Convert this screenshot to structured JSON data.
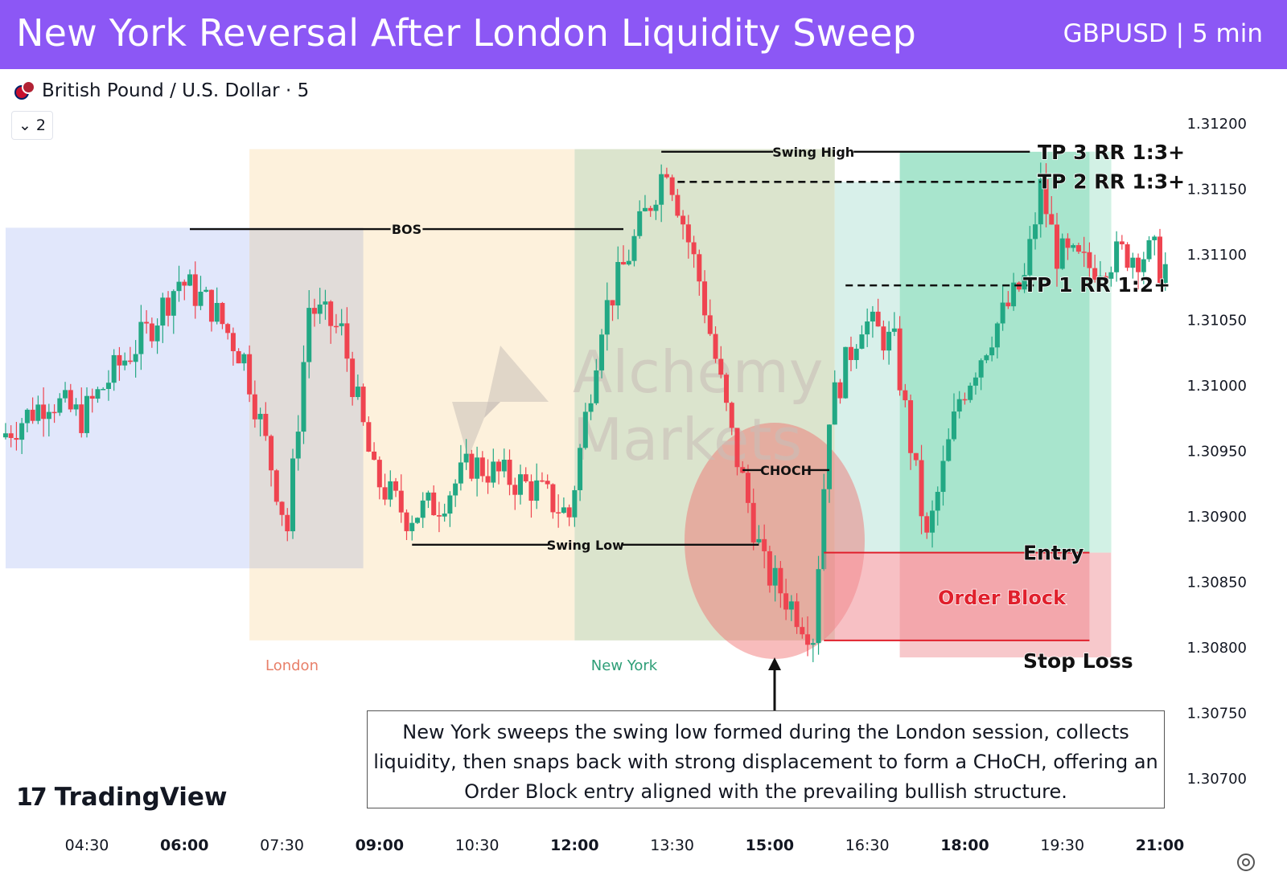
{
  "header": {
    "title": "New York Reversal After London Liquidity Sweep",
    "subtitle": "GBPUSD | 5 min"
  },
  "symbol_bar": {
    "label": "British Pound / U.S. Dollar · 5",
    "collapse_count": "2"
  },
  "branding": {
    "logo_text": "TradingView",
    "logo_mark": "17",
    "watermark_line1": "Alchemy",
    "watermark_line2": "Markets"
  },
  "callout_text": "New York sweeps the swing low formed during the London session, collects liquidity, then snaps back with strong displacement to form a CHoCH, offering an Order Block entry aligned with the prevailing bullish structure.",
  "colors": {
    "header_bg": "#8c57f5",
    "bull": "#22a884",
    "bear": "#ef4450",
    "asia_zone": "#e1e7fb",
    "london_zone": "#fdf1dc",
    "newyork_zone": "#dbe4cd",
    "profit_zone": "#a8e5cd",
    "loss_zone": "#f7c8cb",
    "order_block": "#f08c93"
  },
  "chart_data": {
    "type": "candlestick",
    "symbol": "GBPUSD",
    "timeframe": "5 min",
    "y_axis": {
      "min": 1.3066,
      "max": 1.3122,
      "ticks": [
        "1.31200",
        "1.31150",
        "1.31100",
        "1.31050",
        "1.31000",
        "1.30950",
        "1.30900",
        "1.30850",
        "1.30800",
        "1.30750",
        "1.30700"
      ]
    },
    "x_axis": {
      "ticks": [
        {
          "label": "04:30",
          "bold": false
        },
        {
          "label": "06:00",
          "bold": true
        },
        {
          "label": "07:30",
          "bold": false
        },
        {
          "label": "09:00",
          "bold": true
        },
        {
          "label": "10:30",
          "bold": false
        },
        {
          "label": "12:00",
          "bold": true
        },
        {
          "label": "13:30",
          "bold": false
        },
        {
          "label": "15:00",
          "bold": true
        },
        {
          "label": "16:30",
          "bold": false
        },
        {
          "label": "18:00",
          "bold": true
        },
        {
          "label": "19:30",
          "bold": false
        },
        {
          "label": "21:00",
          "bold": true
        }
      ]
    },
    "sessions": [
      {
        "label": "",
        "start": "03:15",
        "end": "07:00",
        "low": 1.3086,
        "high": 1.3112,
        "color": "#e1e7fb"
      },
      {
        "label": "London",
        "start": "07:00",
        "end": "12:00",
        "low": 1.30805,
        "high": 1.3118,
        "color": "#fdf1dc"
      },
      {
        "label": "New York",
        "start": "12:00",
        "end": "16:00",
        "low": 1.30805,
        "high": 1.3118,
        "color": "#dbe4cd"
      }
    ],
    "trade": {
      "entry": 1.30872,
      "stop_loss": 1.30805,
      "tp1": 1.31076,
      "tp2": 1.31155,
      "tp3": 1.31178,
      "start": "17:00",
      "end": "20:15"
    },
    "levels": [
      {
        "label": "BOS",
        "price": 1.31119,
        "start": "06:05",
        "end": "12:45"
      },
      {
        "label": "Swing High",
        "price": 1.31178,
        "start": "13:20",
        "end": "19:00"
      },
      {
        "label": "Swing Low",
        "price": 1.30878,
        "start": "09:30",
        "end": "14:50"
      },
      {
        "label": "CHOCH",
        "price": 1.30935,
        "start": "14:35",
        "end": "15:55"
      }
    ],
    "annotations": {
      "entry": "Entry",
      "order_block": "Order Block",
      "stop_loss": "Stop Loss",
      "tp1": "TP 1 RR 1:2+",
      "tp2": "TP 2 RR 1:3+",
      "tp3": "TP 3 RR 1:3+"
    },
    "path": [
      {
        "t": "03:15",
        "p": 1.3096
      },
      {
        "t": "04:00",
        "p": 1.3099
      },
      {
        "t": "04:30",
        "p": 1.30975
      },
      {
        "t": "05:00",
        "p": 1.3101
      },
      {
        "t": "05:30",
        "p": 1.3104
      },
      {
        "t": "06:00",
        "p": 1.3108
      },
      {
        "t": "06:30",
        "p": 1.3106
      },
      {
        "t": "07:00",
        "p": 1.3102
      },
      {
        "t": "07:40",
        "p": 1.3089
      },
      {
        "t": "08:00",
        "p": 1.3106
      },
      {
        "t": "08:30",
        "p": 1.3104
      },
      {
        "t": "09:00",
        "p": 1.3093
      },
      {
        "t": "09:30",
        "p": 1.309
      },
      {
        "t": "10:00",
        "p": 1.3091
      },
      {
        "t": "10:30",
        "p": 1.3094
      },
      {
        "t": "11:00",
        "p": 1.3093
      },
      {
        "t": "11:30",
        "p": 1.3092
      },
      {
        "t": "12:00",
        "p": 1.309
      },
      {
        "t": "12:30",
        "p": 1.3105
      },
      {
        "t": "13:00",
        "p": 1.3111
      },
      {
        "t": "13:30",
        "p": 1.3117
      },
      {
        "t": "14:00",
        "p": 1.3108
      },
      {
        "t": "14:30",
        "p": 1.3096
      },
      {
        "t": "15:00",
        "p": 1.3086
      },
      {
        "t": "15:45",
        "p": 1.3081
      },
      {
        "t": "16:00",
        "p": 1.3098
      },
      {
        "t": "16:30",
        "p": 1.3105
      },
      {
        "t": "17:00",
        "p": 1.3103
      },
      {
        "t": "17:30",
        "p": 1.3088
      },
      {
        "t": "18:00",
        "p": 1.3099
      },
      {
        "t": "18:30",
        "p": 1.3104
      },
      {
        "t": "19:00",
        "p": 1.3108
      },
      {
        "t": "19:15",
        "p": 1.3115
      },
      {
        "t": "19:30",
        "p": 1.311
      },
      {
        "t": "20:00",
        "p": 1.3109
      },
      {
        "t": "20:30",
        "p": 1.311
      },
      {
        "t": "21:00",
        "p": 1.311
      },
      {
        "t": "21:05",
        "p": 1.3109
      }
    ]
  }
}
